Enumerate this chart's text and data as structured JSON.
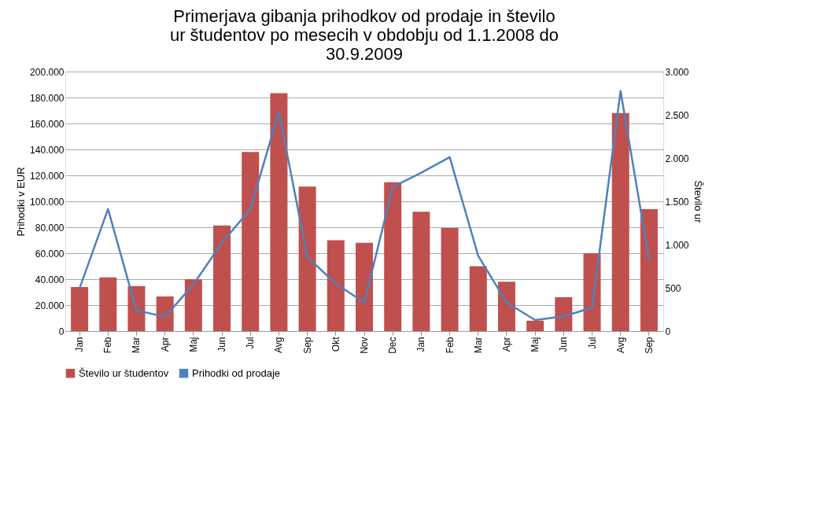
{
  "chart_data": {
    "type": "bar",
    "title": [
      "Primerjava gibanja prihodkov od prodaje in število",
      "ur študentov po mesecih v obdobju od 1.1.2008 do",
      "30.9.2009"
    ],
    "categories": [
      "Jan",
      "Feb",
      "Mar",
      "Apr",
      "Maj",
      "Jun",
      "Jul",
      "Avg",
      "Sep",
      "Okt",
      "Nov",
      "Dec",
      "Jan",
      "Feb",
      "Mar",
      "Apr",
      "Maj",
      "Jun",
      "Jul",
      "Avg",
      "Sep"
    ],
    "ylabel": "Prihodki v EUR",
    "y2label": "Število ur",
    "series": [
      {
        "name": "Število ur študentov",
        "axis": "y2",
        "color": "#c0504d",
        "values": [
          510,
          620,
          520,
          400,
          600,
          1220,
          2070,
          2750,
          1670,
          1050,
          1020,
          1720,
          1380,
          1190,
          750,
          570,
          120,
          390,
          900,
          2520,
          1410
        ]
      },
      {
        "name": "Prihodki od prodaje",
        "type": "line",
        "color": "#4f81bd",
        "values": [
          33000,
          94000,
          16000,
          11000,
          36000,
          68000,
          94000,
          169000,
          57000,
          36500,
          22000,
          111000,
          122000,
          134000,
          58000,
          22000,
          8500,
          11400,
          18000,
          185000,
          55000
        ]
      }
    ],
    "ylim": [
      0,
      200000
    ],
    "yticks": [
      0,
      {
        "value": 20000,
        "label": "20.000"
      },
      {
        "value": 40000,
        "label": "40.000"
      },
      {
        "value": 60000,
        "label": "60.000"
      },
      {
        "value": 80000,
        "label": "80.000"
      },
      {
        "value": 100000,
        "label": "100.000"
      },
      {
        "value": 120000,
        "label": "120.000"
      },
      {
        "value": 140000,
        "label": "140.000"
      },
      {
        "value": 160000,
        "label": "160.000"
      },
      {
        "value": 180000,
        "label": "180.000"
      },
      {
        "value": 200000,
        "label": "200.000"
      }
    ],
    "y2lim": [
      0,
      3000
    ],
    "y2ticks": [
      0,
      500,
      {
        "value": 1000,
        "label": "1.000"
      },
      {
        "value": 1500,
        "label": "1.500"
      },
      {
        "value": 2000,
        "label": "2.000"
      },
      {
        "value": 2500,
        "label": "2.500"
      },
      {
        "value": 3000,
        "label": "3.000"
      }
    ],
    "grid": "y",
    "legend": "bottom",
    "marker": "none",
    "line_style": "solid"
  }
}
